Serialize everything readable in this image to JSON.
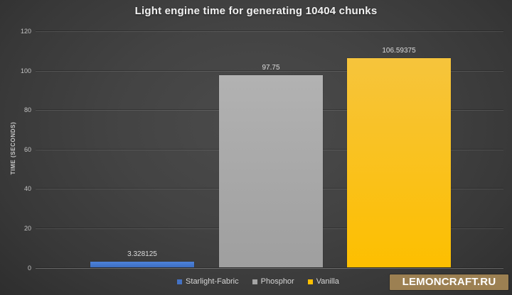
{
  "chart_data": {
    "type": "bar",
    "title": "Light engine time for generating 10404 chunks",
    "categories": [
      "Starlight-Fabric",
      "Phosphor",
      "Vanilla"
    ],
    "values": [
      3.328125,
      97.75,
      106.59375
    ],
    "value_labels": [
      "3.328125",
      "97.75",
      "106.59375"
    ],
    "series_colors": [
      "#4472c4",
      "#a5a5a5",
      "#ffc000"
    ],
    "series_gradients": [
      [
        "#4d82da",
        "#3d6ec1"
      ],
      [
        "#b2b2b2",
        "#9f9f9f"
      ],
      [
        "#f6c43c",
        "#fdbf00"
      ]
    ],
    "xlabel": "",
    "ylabel": "TIME (SECONDS)",
    "ylim": [
      0,
      120
    ],
    "yticks": [
      0,
      20,
      40,
      60,
      80,
      100,
      120
    ],
    "grid": true,
    "legend_position": "bottom"
  },
  "watermark": {
    "label": "LEMONCRAFT.RU",
    "background": "#9c8052"
  }
}
